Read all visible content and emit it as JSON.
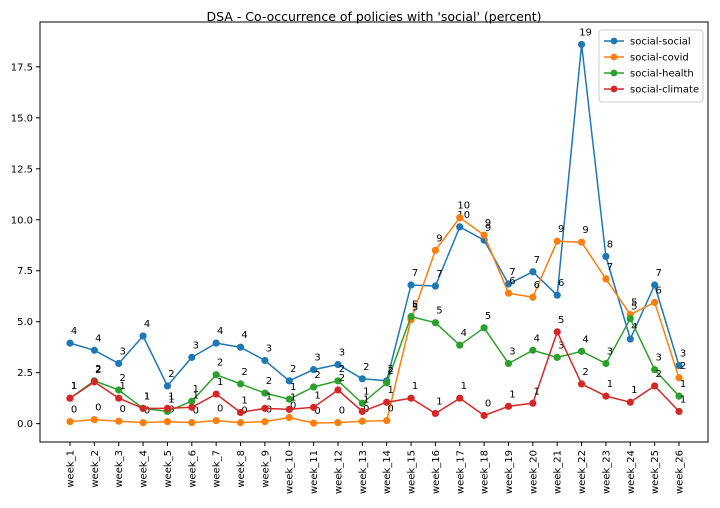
{
  "chart_data": {
    "type": "line",
    "title": "DSA - Co-occurrence of policies with 'social' (percent)",
    "xlabel": "",
    "ylabel": "",
    "ylim": [
      -0.9,
      19.7
    ],
    "yticks": [
      0.0,
      2.5,
      5.0,
      7.5,
      10.0,
      12.5,
      15.0,
      17.5
    ],
    "ytick_labels": [
      "0.0",
      "2.5",
      "5.0",
      "7.5",
      "10.0",
      "12.5",
      "15.0",
      "17.5"
    ],
    "grid": false,
    "legend_position": "top-right",
    "categories": [
      "week_1",
      "week_2",
      "week_3",
      "week_4",
      "week_5",
      "week_6",
      "week_7",
      "week_8",
      "week_9",
      "week_10",
      "week_11",
      "week_12",
      "week_13",
      "week_14",
      "week_15",
      "week_16",
      "week_17",
      "week_18",
      "week_19",
      "week_20",
      "week_21",
      "week_22",
      "week_23",
      "week_24",
      "week_25",
      "week_26"
    ],
    "series": [
      {
        "name": "social-social",
        "color": "#1f77b4",
        "values": [
          3.95,
          3.6,
          2.95,
          4.3,
          1.85,
          3.25,
          3.95,
          3.75,
          3.1,
          2.1,
          2.65,
          2.9,
          2.2,
          2.1,
          6.8,
          6.75,
          9.65,
          9.0,
          6.85,
          7.45,
          6.3,
          18.6,
          8.2,
          4.15,
          6.8,
          2.85
        ],
        "labels": [
          "4",
          "4",
          "3",
          "4",
          "2",
          "3",
          "4",
          "4",
          "3",
          "2",
          "3",
          "3",
          "2",
          "2",
          "7",
          "7",
          "10",
          "9",
          "7",
          "7",
          "6",
          "19",
          "8",
          "4",
          "7",
          "3"
        ]
      },
      {
        "name": "social-covid",
        "color": "#ff7f0e",
        "values": [
          0.1,
          0.2,
          0.12,
          0.05,
          0.1,
          0.05,
          0.15,
          0.05,
          0.1,
          0.3,
          0.03,
          0.05,
          0.12,
          0.15,
          5.1,
          8.5,
          10.1,
          9.25,
          6.4,
          6.2,
          8.95,
          8.9,
          7.1,
          5.35,
          5.95,
          2.25
        ],
        "labels": [
          "0",
          "0",
          "0",
          "0",
          "0",
          "0",
          "0",
          "0",
          "0",
          "0",
          "0",
          "0",
          "0",
          "0",
          "5",
          "9",
          "10",
          "9",
          "6",
          "6",
          "9",
          "9",
          "7",
          "5",
          "6",
          "2"
        ]
      },
      {
        "name": "social-health",
        "color": "#2ca02c",
        "values": [
          1.25,
          2.1,
          1.65,
          0.75,
          0.6,
          1.1,
          2.4,
          1.95,
          1.5,
          1.2,
          1.8,
          2.1,
          1.0,
          2.0,
          5.25,
          4.95,
          3.85,
          4.7,
          2.95,
          3.6,
          3.25,
          3.55,
          2.95,
          5.15,
          2.65,
          1.35
        ],
        "labels": [
          "1",
          "2",
          "2",
          "1",
          "1",
          "1",
          "2",
          "2",
          "2",
          "1",
          "2",
          "2",
          "1",
          "2",
          "5",
          "5",
          "4",
          "5",
          "3",
          "4",
          "3",
          "4",
          "3",
          "5",
          "3",
          "1"
        ]
      },
      {
        "name": "social-climate",
        "color": "#d62728",
        "values": [
          1.25,
          2.05,
          1.25,
          0.75,
          0.75,
          0.8,
          1.45,
          0.55,
          0.75,
          0.7,
          0.8,
          1.65,
          0.6,
          1.05,
          1.25,
          0.5,
          1.25,
          0.4,
          0.85,
          1.0,
          4.5,
          1.95,
          1.35,
          1.05,
          1.85,
          0.6
        ],
        "labels": [
          "1",
          "2",
          "1",
          "1",
          "1",
          "1",
          "1",
          "1",
          "1",
          "1",
          "1",
          "2",
          "1",
          "1",
          "1",
          "1",
          "1",
          "0",
          "1",
          "1",
          "5",
          "2",
          "1",
          "1",
          "2",
          "1"
        ]
      }
    ]
  }
}
